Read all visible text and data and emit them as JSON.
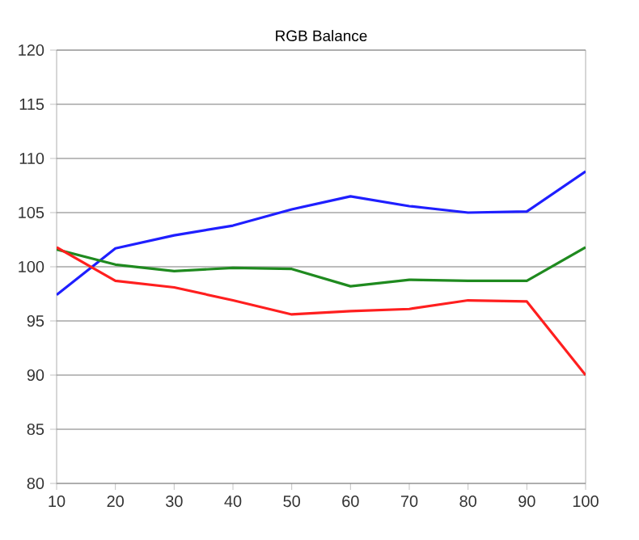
{
  "chart_data": {
    "type": "line",
    "title": "RGB Balance",
    "x": [
      10,
      20,
      30,
      40,
      50,
      60,
      70,
      80,
      90,
      100
    ],
    "series": [
      {
        "color": "#1f1fff",
        "values": [
          97.4,
          101.7,
          102.9,
          103.8,
          105.3,
          106.5,
          105.6,
          105.0,
          105.1,
          108.8
        ]
      },
      {
        "color": "#1f8a1f",
        "values": [
          101.6,
          100.2,
          99.6,
          99.9,
          99.8,
          98.2,
          98.8,
          98.7,
          98.7,
          101.8
        ]
      },
      {
        "color": "#ff1f1f",
        "values": [
          101.8,
          98.7,
          98.1,
          96.9,
          95.6,
          95.9,
          96.1,
          96.9,
          96.8,
          90.0
        ]
      }
    ],
    "xlim": [
      10,
      100
    ],
    "xticks": [
      10,
      20,
      30,
      40,
      50,
      60,
      70,
      80,
      90,
      100
    ],
    "ylim": [
      80,
      120
    ],
    "yticks": [
      80,
      85,
      90,
      95,
      100,
      105,
      110,
      115,
      120
    ],
    "grid": "y",
    "marker": "none",
    "line_style": "solid"
  }
}
